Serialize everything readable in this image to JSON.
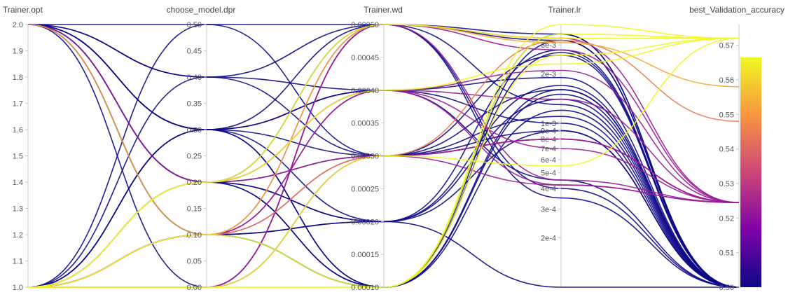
{
  "chart_data": {
    "type": "parallel_coordinates",
    "axes": [
      {
        "name": "Trainer.opt",
        "range": [
          1.0,
          2.0
        ],
        "ticks": [
          "2.0",
          "1.9",
          "1.8",
          "1.7",
          "1.6",
          "1.5",
          "1.4",
          "1.3",
          "1.2",
          "1.1",
          "1.0"
        ],
        "tick_values": [
          2.0,
          1.9,
          1.8,
          1.7,
          1.6,
          1.5,
          1.4,
          1.3,
          1.2,
          1.1,
          1.0
        ]
      },
      {
        "name": "choose_model.dpr",
        "range": [
          0.0,
          0.5
        ],
        "ticks": [
          "0.50",
          "0.45",
          "0.40",
          "0.35",
          "0.30",
          "0.25",
          "0.20",
          "0.15",
          "0.10",
          "0.05",
          "0.00"
        ],
        "tick_values": [
          0.5,
          0.45,
          0.4,
          0.35,
          0.3,
          0.25,
          0.2,
          0.15,
          0.1,
          0.05,
          0.0
        ]
      },
      {
        "name": "Trainer.wd",
        "range": [
          0.0001,
          0.0005
        ],
        "ticks": [
          "0.00050",
          "0.00045",
          "0.00040",
          "0.00035",
          "0.00030",
          "0.00025",
          "0.00020",
          "0.00015",
          "0.00010"
        ],
        "tick_values": [
          0.0005,
          0.00045,
          0.0004,
          0.00035,
          0.0003,
          0.00025,
          0.0002,
          0.00015,
          0.0001
        ]
      },
      {
        "name": "Trainer.lr",
        "scale": "log",
        "range": [
          0.0001,
          0.004
        ],
        "ticks": [
          "3e-3",
          "2e-3",
          "1e-3",
          "9e-4",
          "8e-4",
          "7e-4",
          "6e-4",
          "5e-4",
          "4e-4",
          "3e-4",
          "2e-4"
        ],
        "tick_values": [
          0.003,
          0.002,
          0.001,
          0.0009,
          0.0008,
          0.0007,
          0.0006,
          0.0005,
          0.0004,
          0.0003,
          0.0002
        ]
      },
      {
        "name": "best_Validation_accuracy",
        "range": [
          0.5,
          0.576
        ],
        "ticks": [
          "0.57",
          "0.56",
          "0.55",
          "0.54",
          "0.53",
          "0.52",
          "0.51",
          "0.50"
        ],
        "tick_values": [
          0.57,
          0.56,
          0.55,
          0.54,
          0.53,
          0.52,
          0.51,
          0.5
        ]
      }
    ],
    "colorbar": {
      "range": [
        0.5,
        0.572
      ],
      "stops": [
        "#0d0887",
        "#7e03a8",
        "#cc4778",
        "#f89540",
        "#f0f921"
      ]
    },
    "runs": [
      [
        1.0,
        0.0,
        0.0003,
        0.0008,
        0.5245
      ],
      [
        1.0,
        0.0,
        0.0005,
        0.0028,
        0.5245
      ],
      [
        1.0,
        0.0,
        0.0003,
        0.00042,
        0.5245
      ],
      [
        1.0,
        0.1,
        0.0004,
        0.0014,
        0.5245
      ],
      [
        1.0,
        0.1,
        0.0004,
        0.0007,
        0.5245
      ],
      [
        1.0,
        0.1,
        0.0003,
        0.0008,
        0.5245
      ],
      [
        1.0,
        0.2,
        0.0003,
        0.0008,
        0.5245
      ],
      [
        1.0,
        0.2,
        0.0004,
        0.0021,
        0.5245
      ],
      [
        1.0,
        0.1,
        0.0005,
        0.0033,
        0.5245
      ],
      [
        2.0,
        0.2,
        0.0004,
        0.00042,
        0.5245
      ],
      [
        1.0,
        0.0,
        0.0005,
        0.00045,
        0.5245
      ],
      [
        1.0,
        0.1,
        0.0003,
        0.0032,
        0.548
      ],
      [
        1.0,
        0.2,
        0.0005,
        0.0033,
        0.572
      ],
      [
        2.0,
        0.1,
        0.0005,
        0.0031,
        0.558
      ],
      [
        1.0,
        0.0,
        0.0001,
        0.004,
        0.572
      ],
      [
        1.0,
        0.1,
        0.0001,
        0.0035,
        0.572
      ],
      [
        1.0,
        0.0,
        0.0001,
        0.0026,
        0.572
      ],
      [
        1.0,
        0.0,
        0.0003,
        0.00055,
        0.572
      ],
      [
        1.0,
        0.2,
        0.0004,
        0.0023,
        0.572
      ],
      [
        2.0,
        0.0,
        0.0005,
        0.0004,
        0.5
      ],
      [
        2.0,
        0.5,
        0.0005,
        0.0035,
        0.5
      ],
      [
        2.0,
        0.4,
        0.0003,
        0.0026,
        0.5
      ],
      [
        2.0,
        0.3,
        0.0004,
        0.0019,
        0.5
      ],
      [
        2.0,
        0.2,
        0.0005,
        0.0032,
        0.5
      ],
      [
        2.0,
        0.3,
        0.0003,
        0.0009,
        0.5
      ],
      [
        2.0,
        0.2,
        0.0001,
        0.0015,
        0.5
      ],
      [
        2.0,
        0.2,
        0.0002,
        0.0028,
        0.5
      ],
      [
        2.0,
        0.1,
        0.0002,
        0.0017,
        0.5
      ],
      [
        2.0,
        0.3,
        0.0001,
        0.0012,
        0.5
      ],
      [
        1.0,
        0.5,
        0.0003,
        0.0011,
        0.5
      ],
      [
        1.0,
        0.4,
        0.0005,
        0.0013,
        0.5
      ],
      [
        1.0,
        0.3,
        0.0002,
        0.0009,
        0.5
      ],
      [
        1.0,
        0.3,
        0.0005,
        0.00035,
        0.5
      ],
      [
        1.0,
        0.1,
        0.0002,
        0.0001,
        0.5
      ],
      [
        1.0,
        0.2,
        0.0001,
        0.0035,
        0.5
      ],
      [
        1.0,
        0.1,
        0.0001,
        0.0027,
        0.5
      ],
      [
        2.0,
        0.1,
        0.0001,
        0.0032,
        0.5
      ],
      [
        2.0,
        0.2,
        0.0003,
        0.0016,
        0.5
      ],
      [
        2.0,
        0.3,
        0.0004,
        0.001,
        0.5
      ],
      [
        1.0,
        0.2,
        0.0002,
        0.0014,
        0.5
      ],
      [
        1.0,
        0.3,
        0.0001,
        0.0016,
        0.5
      ],
      [
        2.0,
        0.4,
        0.0004,
        0.00045,
        0.5
      ]
    ]
  }
}
